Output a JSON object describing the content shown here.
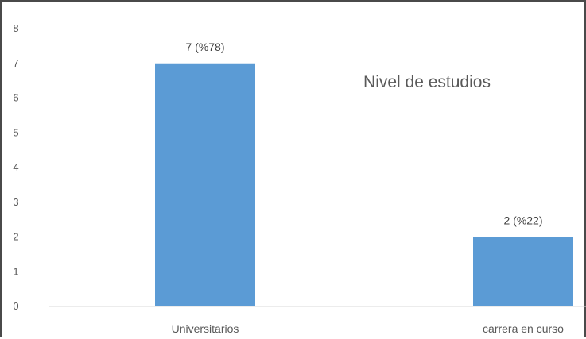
{
  "chart_data": {
    "type": "bar",
    "title": "Nivel de estudios",
    "categories": [
      "Universitarios",
      "carrera en curso"
    ],
    "values": [
      7,
      2
    ],
    "data_labels": [
      "7 (%78)",
      "2 (%22)"
    ],
    "ylim": [
      0,
      8
    ],
    "yticks": [
      "0",
      "1",
      "2",
      "3",
      "4",
      "5",
      "6",
      "7",
      "8"
    ],
    "xlabel": "",
    "ylabel": "",
    "grid": false,
    "legend": "none",
    "bar_color": "#5b9bd5",
    "axis_color": "#d9d9d9",
    "frame_color": "#4a4a4a"
  }
}
